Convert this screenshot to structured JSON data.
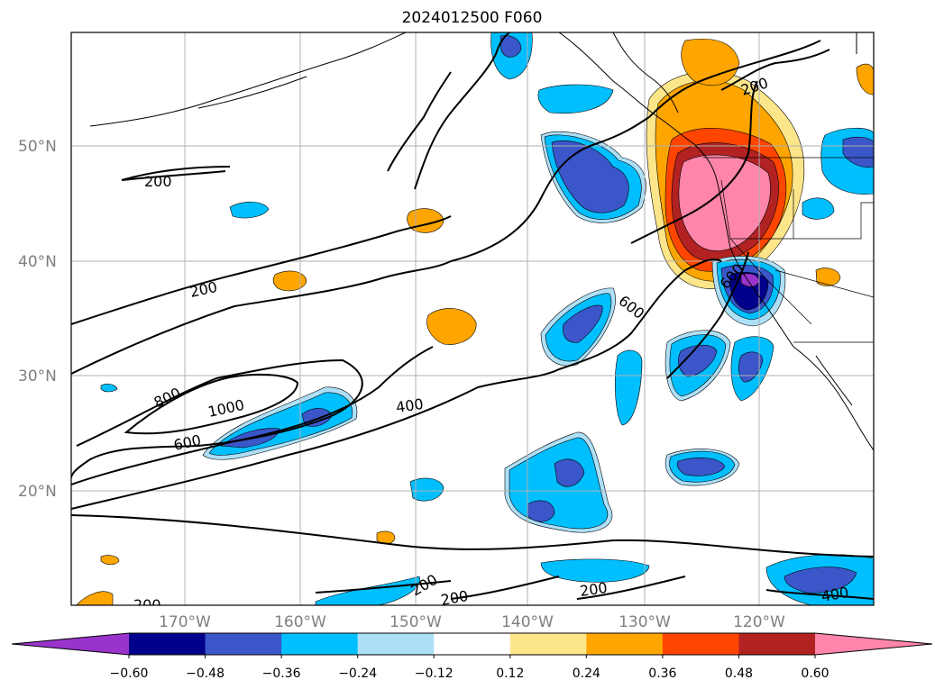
{
  "title": "2024012500 F060",
  "map": {
    "lat_labels": [
      "50°N",
      "40°N",
      "30°N",
      "20°N"
    ],
    "lon_labels": [
      "170°W",
      "160°W",
      "150°W",
      "140°W",
      "130°W",
      "120°W"
    ],
    "contour_labels": [
      "200",
      "200",
      "200",
      "200",
      "200",
      "200",
      "200",
      "600",
      "600",
      "800",
      "1000",
      "400",
      "400",
      "600"
    ]
  },
  "colorbar": {
    "colors": [
      "#9933cc",
      "#00008b",
      "#3a56c9",
      "#00bfff",
      "#ade0f7",
      "#ffffff",
      "#fde68a",
      "#ffa500",
      "#ff4500",
      "#b22222",
      "#ff85aa"
    ],
    "labels": [
      "−0.60",
      "−0.48",
      "−0.36",
      "−0.24",
      "−0.12",
      "0.12",
      "0.24",
      "0.36",
      "0.48",
      "0.60"
    ]
  }
}
